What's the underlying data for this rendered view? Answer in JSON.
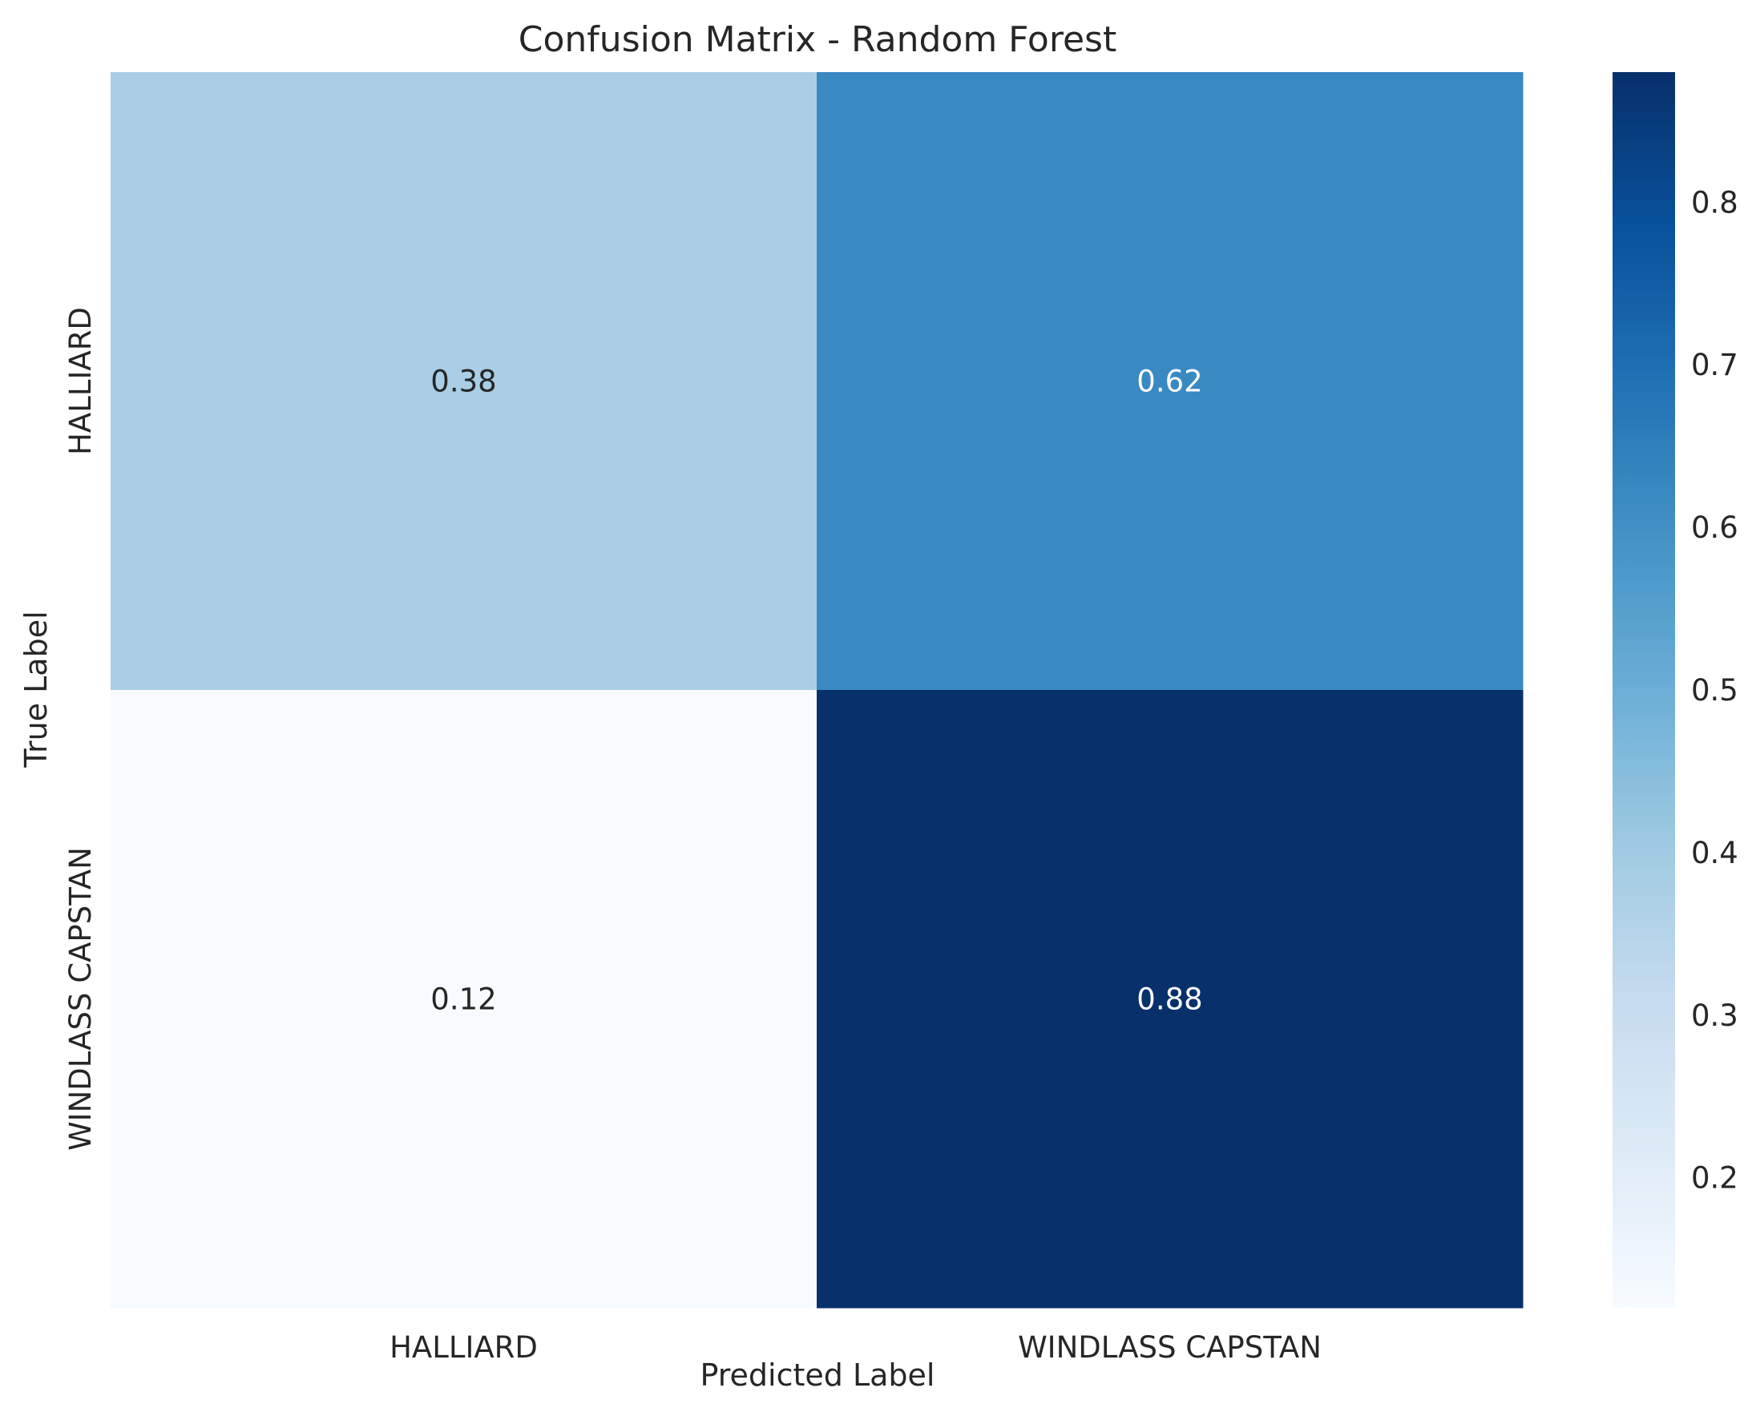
{
  "chart_data": {
    "type": "heatmap",
    "title": "Confusion Matrix - Random Forest",
    "xlabel": "Predicted Label",
    "ylabel": "True Label",
    "x_categories": [
      "HALLIARD",
      "WINDLASS CAPSTAN"
    ],
    "y_categories": [
      "HALLIARD",
      "WINDLASS CAPSTAN"
    ],
    "values": [
      [
        0.38,
        0.62
      ],
      [
        0.12,
        0.88
      ]
    ],
    "value_labels": [
      [
        "0.38",
        "0.62"
      ],
      [
        "0.12",
        "0.88"
      ]
    ],
    "colormap": "Blues",
    "color_range": [
      0.12,
      0.88
    ],
    "colorbar": {
      "ticks": [
        0.2,
        0.3,
        0.4,
        0.5,
        0.6,
        0.7,
        0.8
      ],
      "tick_labels": [
        "0.2",
        "0.3",
        "0.4",
        "0.5",
        "0.6",
        "0.7",
        "0.8"
      ]
    },
    "grid": false,
    "colors": {
      "text_dark": "#262626",
      "text_light": "#ffffff"
    }
  }
}
